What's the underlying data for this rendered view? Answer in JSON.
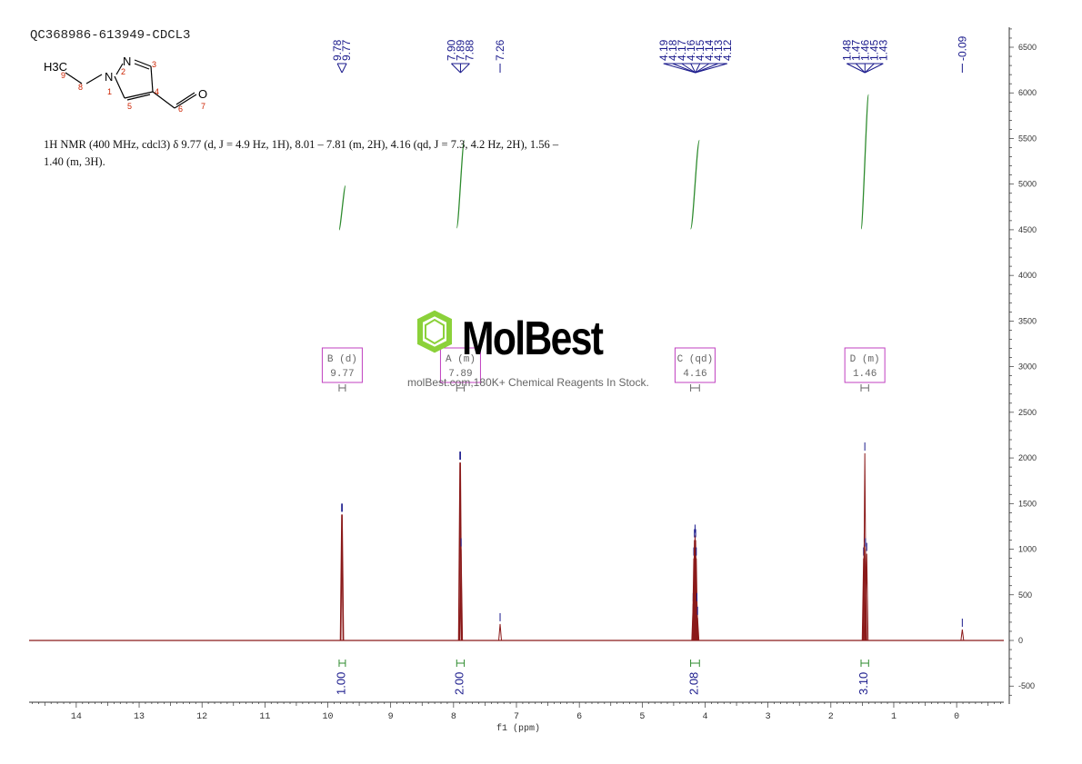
{
  "sample_id": "QC368986-613949-CDCL3",
  "nmr_description": "1H NMR (400 MHz, cdcl3) δ 9.77 (d, J = 4.9 Hz, 1H), 8.01 – 7.81 (m, 2H), 4.16 (qd, J = 7.3, 4.2 Hz, 2H), 1.56 – 1.40 (m, 3H).",
  "structure": {
    "groups": [
      "H3C",
      "N",
      "N",
      "O"
    ],
    "atom_numbers": [
      "1",
      "2",
      "3",
      "4",
      "5",
      "6",
      "7",
      "8",
      "9"
    ]
  },
  "watermark": {
    "brand": "MolBest",
    "tagline": "molBest.com,180K+ Chemical Reagents In Stock."
  },
  "colors": {
    "spectrum": "#8b1a1a",
    "peak_labels": "#1a1a8c",
    "integrals": "#2e8b2e",
    "multiplet_boxes": "#c040c0",
    "logo_green": "#8bd13a",
    "atom_numbers": "#cc2200"
  },
  "chart_data": {
    "type": "line",
    "title": "",
    "xlabel": "f1 (ppm)",
    "ylabel": "",
    "xlim": [
      14.75,
      -0.75
    ],
    "ylim": [
      -700,
      6700
    ],
    "x_axis_reversed": true,
    "x_ticks": [
      14,
      13,
      12,
      11,
      10,
      9,
      8,
      7,
      6,
      5,
      4,
      3,
      2,
      1,
      0
    ],
    "y_ticks": [
      -500,
      0,
      500,
      1000,
      1500,
      2000,
      2500,
      3000,
      3500,
      4000,
      4500,
      5000,
      5500,
      6000,
      6500
    ],
    "grid": false,
    "series": [
      {
        "peaks": [
          {
            "ppm": 9.78,
            "height": 1380
          },
          {
            "ppm": 9.77,
            "height": 1380
          },
          {
            "ppm": 7.9,
            "height": 1950
          },
          {
            "ppm": 7.89,
            "height": 1950
          },
          {
            "ppm": 7.88,
            "height": 1000
          },
          {
            "ppm": 7.26,
            "height": 180
          },
          {
            "ppm": 4.19,
            "height": 400
          },
          {
            "ppm": 4.18,
            "height": 900
          },
          {
            "ppm": 4.17,
            "height": 1100
          },
          {
            "ppm": 4.16,
            "height": 1150
          },
          {
            "ppm": 4.15,
            "height": 1100
          },
          {
            "ppm": 4.14,
            "height": 900
          },
          {
            "ppm": 4.13,
            "height": 400
          },
          {
            "ppm": 4.12,
            "height": 250
          },
          {
            "ppm": 1.48,
            "height": 900
          },
          {
            "ppm": 1.47,
            "height": 1050
          },
          {
            "ppm": 1.46,
            "height": 2050
          },
          {
            "ppm": 1.45,
            "height": 1000
          },
          {
            "ppm": 1.43,
            "height": 950
          },
          {
            "ppm": -0.09,
            "height": 120
          }
        ]
      }
    ],
    "peak_labels": [
      {
        "group": [
          "9.78",
          "9.77"
        ]
      },
      {
        "group": [
          "7.90",
          "7.89",
          "7.88"
        ]
      },
      {
        "group": [
          "7.26"
        ]
      },
      {
        "group": [
          "4.19",
          "4.18",
          "4.17",
          "4.16",
          "4.15",
          "4.14",
          "4.13",
          "4.12"
        ]
      },
      {
        "group": [
          "1.48",
          "1.47",
          "1.46",
          "1.45",
          "1.43"
        ]
      },
      {
        "group": [
          "-0.09"
        ]
      }
    ],
    "integrals": [
      {
        "from": 9.82,
        "to": 9.72,
        "value": "1.00",
        "y_start": 4500,
        "y_end": 4980
      },
      {
        "from": 7.95,
        "to": 7.83,
        "value": "2.00",
        "y_start": 4520,
        "y_end": 5480
      },
      {
        "from": 4.23,
        "to": 4.09,
        "value": "2.08",
        "y_start": 4510,
        "y_end": 5480
      },
      {
        "from": 1.52,
        "to": 1.4,
        "value": "3.10",
        "y_start": 4510,
        "y_end": 5980
      }
    ],
    "multiplets": [
      {
        "label": "B (d)",
        "shift": "9.77",
        "from": 9.82,
        "to": 9.72
      },
      {
        "label": "A (m)",
        "shift": "7.89",
        "from": 7.95,
        "to": 7.83
      },
      {
        "label": "C (qd)",
        "shift": "4.16",
        "from": 4.23,
        "to": 4.09
      },
      {
        "label": "D (m)",
        "shift": "1.46",
        "from": 1.52,
        "to": 1.4
      }
    ]
  }
}
